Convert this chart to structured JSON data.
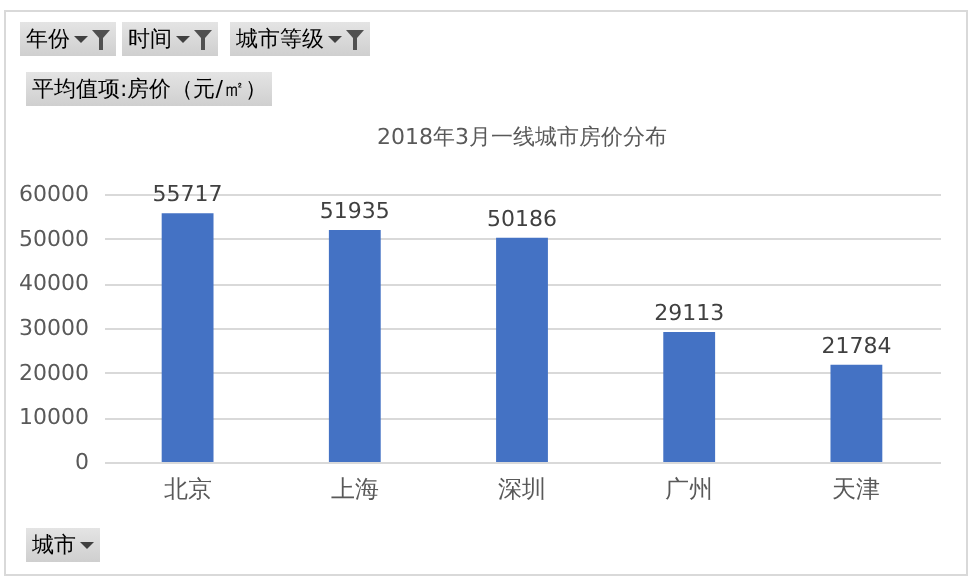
{
  "chart_data": {
    "type": "bar",
    "title": "2018年3月一线城市房价分布",
    "categories": [
      "北京",
      "上海",
      "深圳",
      "广州",
      "天津"
    ],
    "values": [
      55717,
      51935,
      50186,
      29113,
      21784
    ],
    "color": "#4472c4",
    "ylim": [
      0,
      60000
    ],
    "yticks": [
      0,
      10000,
      20000,
      30000,
      40000,
      50000,
      60000
    ],
    "grid": "y",
    "data_labels": true,
    "annotations": [
      "年份",
      "时间",
      "城市等级",
      "平均值项:房价（元/㎡）",
      "城市"
    ]
  }
}
